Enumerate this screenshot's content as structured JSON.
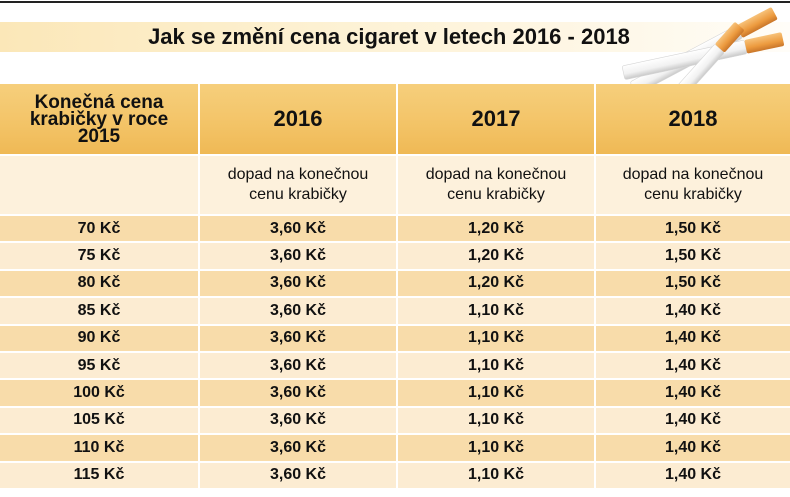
{
  "title": "Jak se změní cena cigaret v letech 2016 - 2018",
  "chart_data": {
    "type": "table",
    "columns": [
      "Konečná cena krabičky v roce 2015",
      "2016",
      "2017",
      "2018"
    ],
    "subheaders": [
      "",
      "dopad na konečnou cenu krabičky",
      "dopad na konečnou cenu krabičky",
      "dopad na konečnou cenu krabičky"
    ],
    "rows": [
      [
        "70 Kč",
        "3,60 Kč",
        "1,20 Kč",
        "1,50 Kč"
      ],
      [
        "75 Kč",
        "3,60 Kč",
        "1,20 Kč",
        "1,50 Kč"
      ],
      [
        "80 Kč",
        "3,60 Kč",
        "1,20 Kč",
        "1,50 Kč"
      ],
      [
        "85 Kč",
        "3,60 Kč",
        "1,10 Kč",
        "1,40 Kč"
      ],
      [
        "90 Kč",
        "3,60 Kč",
        "1,10 Kč",
        "1,40 Kč"
      ],
      [
        "95 Kč",
        "3,60 Kč",
        "1,10 Kč",
        "1,40 Kč"
      ],
      [
        "100 Kč",
        "3,60 Kč",
        "1,10 Kč",
        "1,40 Kč"
      ],
      [
        "105 Kč",
        "3,60 Kč",
        "1,10 Kč",
        "1,40 Kč"
      ],
      [
        "110 Kč",
        "3,60 Kč",
        "1,10 Kč",
        "1,40 Kč"
      ],
      [
        "115 Kč",
        "3,60 Kč",
        "1,10 Kč",
        "1,40 Kč"
      ]
    ]
  },
  "colors": {
    "header": "#f3c366",
    "row_dark": "#f8dcaa",
    "row_light": "#fcecd2",
    "cigarette_filter": "#f0a24a"
  },
  "illustration": "cigarettes-illustration"
}
